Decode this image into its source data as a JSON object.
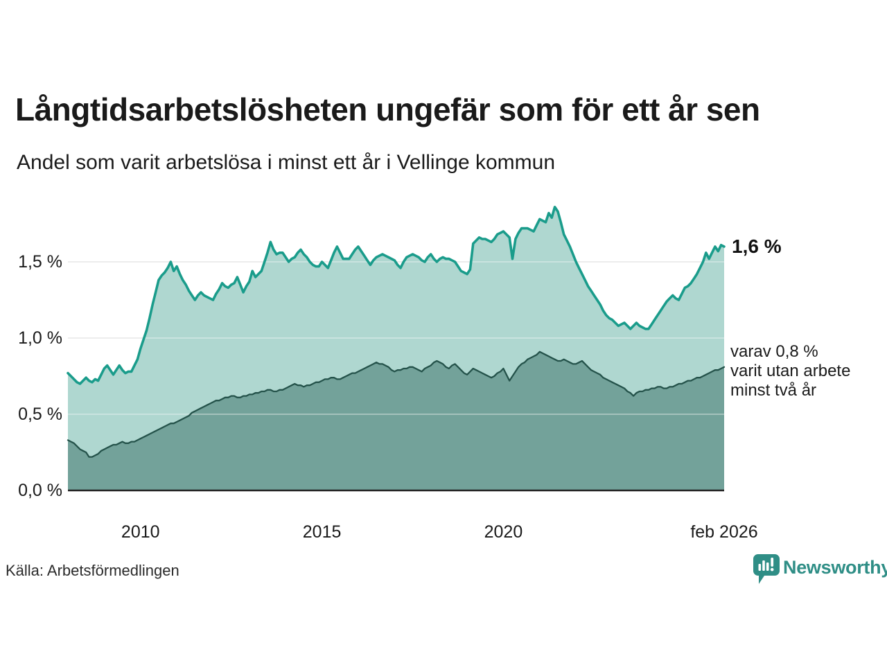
{
  "header": {
    "title": "Långtidsarbetslösheten ungefär som för ett år sen",
    "subtitle": "Andel som varit arbetslösa i minst ett år i Vellinge kommun"
  },
  "footer": {
    "source": "Källa: Arbetsförmedlingen",
    "brand": "Newsworthy"
  },
  "colors": {
    "teal_line": "#1a9c8b",
    "teal_fill": "#a6d3cb",
    "dark_fill": "#6d9c94",
    "dark_line": "#24524a",
    "grid": "#e3e3e3",
    "baseline": "#222222",
    "text": "#1a1a1a",
    "brand_teal": "#2f8e86"
  },
  "chart_data": {
    "type": "area",
    "title": "Långtidsarbetslösheten ungefär som för ett år sen",
    "subtitle": "Andel som varit arbetslösa i minst ett år i Vellinge kommun",
    "unit": "%",
    "grid": true,
    "legend": "none",
    "x_axis": {
      "frequency": "monthly",
      "start_label_implied": "2008",
      "end_label": "feb 2026",
      "ticks": [
        {
          "label": "2010",
          "month_index": 24
        },
        {
          "label": "2015",
          "month_index": 84
        },
        {
          "label": "2020",
          "month_index": 144
        },
        {
          "label": "feb 2026",
          "month_index": 217
        }
      ]
    },
    "y_axis": {
      "ticks": [
        0,
        0.5,
        1.0,
        1.5
      ],
      "tick_labels": [
        "0,0 %",
        "0,5 %",
        "1,0 %",
        "1,5 %"
      ],
      "ylim": [
        0,
        1.9
      ]
    },
    "annotations": {
      "latest_value_label": "1,6 %",
      "series2_label_lines": [
        "varav 0,8 %",
        "varit utan arbete",
        "minst två år"
      ]
    },
    "series": [
      {
        "name": "Andel arbetslösa minst ett år",
        "color": "#1a9c8b",
        "fill": "#a6d3cb",
        "latest_value": 1.6,
        "values": [
          0.77,
          0.75,
          0.73,
          0.71,
          0.7,
          0.72,
          0.74,
          0.72,
          0.71,
          0.73,
          0.72,
          0.76,
          0.8,
          0.82,
          0.79,
          0.76,
          0.79,
          0.82,
          0.79,
          0.77,
          0.78,
          0.78,
          0.82,
          0.86,
          0.93,
          0.99,
          1.05,
          1.13,
          1.22,
          1.3,
          1.38,
          1.41,
          1.43,
          1.46,
          1.5,
          1.44,
          1.47,
          1.42,
          1.38,
          1.35,
          1.31,
          1.28,
          1.25,
          1.28,
          1.3,
          1.28,
          1.27,
          1.26,
          1.25,
          1.29,
          1.32,
          1.36,
          1.34,
          1.33,
          1.35,
          1.36,
          1.4,
          1.35,
          1.3,
          1.34,
          1.37,
          1.44,
          1.4,
          1.42,
          1.44,
          1.5,
          1.56,
          1.63,
          1.58,
          1.55,
          1.56,
          1.56,
          1.53,
          1.5,
          1.52,
          1.53,
          1.56,
          1.58,
          1.55,
          1.53,
          1.5,
          1.48,
          1.47,
          1.47,
          1.5,
          1.48,
          1.46,
          1.51,
          1.56,
          1.6,
          1.56,
          1.52,
          1.52,
          1.52,
          1.55,
          1.58,
          1.6,
          1.57,
          1.54,
          1.51,
          1.48,
          1.51,
          1.53,
          1.54,
          1.55,
          1.54,
          1.53,
          1.52,
          1.51,
          1.48,
          1.46,
          1.5,
          1.53,
          1.54,
          1.55,
          1.54,
          1.53,
          1.51,
          1.5,
          1.53,
          1.55,
          1.52,
          1.5,
          1.52,
          1.53,
          1.52,
          1.52,
          1.51,
          1.5,
          1.47,
          1.44,
          1.43,
          1.42,
          1.45,
          1.62,
          1.64,
          1.66,
          1.65,
          1.65,
          1.64,
          1.63,
          1.65,
          1.68,
          1.69,
          1.7,
          1.68,
          1.66,
          1.52,
          1.65,
          1.69,
          1.72,
          1.72,
          1.72,
          1.71,
          1.7,
          1.74,
          1.78,
          1.77,
          1.76,
          1.82,
          1.79,
          1.86,
          1.83,
          1.76,
          1.68,
          1.64,
          1.6,
          1.55,
          1.5,
          1.46,
          1.42,
          1.38,
          1.34,
          1.31,
          1.28,
          1.25,
          1.22,
          1.18,
          1.15,
          1.13,
          1.12,
          1.1,
          1.08,
          1.09,
          1.1,
          1.08,
          1.06,
          1.08,
          1.1,
          1.08,
          1.07,
          1.06,
          1.06,
          1.09,
          1.12,
          1.15,
          1.18,
          1.21,
          1.24,
          1.26,
          1.28,
          1.26,
          1.25,
          1.29,
          1.33,
          1.34,
          1.36,
          1.39,
          1.42,
          1.46,
          1.5,
          1.56,
          1.52,
          1.56,
          1.6,
          1.57,
          1.61,
          1.6
        ]
      },
      {
        "name": "varav utan arbete minst två år",
        "color": "#24524a",
        "fill": "#6d9c94",
        "latest_value": 0.8,
        "values": [
          0.33,
          0.32,
          0.31,
          0.29,
          0.27,
          0.26,
          0.25,
          0.22,
          0.22,
          0.23,
          0.24,
          0.26,
          0.27,
          0.28,
          0.29,
          0.3,
          0.3,
          0.31,
          0.32,
          0.31,
          0.31,
          0.32,
          0.32,
          0.33,
          0.34,
          0.35,
          0.36,
          0.37,
          0.38,
          0.39,
          0.4,
          0.41,
          0.42,
          0.43,
          0.44,
          0.44,
          0.45,
          0.46,
          0.47,
          0.48,
          0.49,
          0.51,
          0.52,
          0.53,
          0.54,
          0.55,
          0.56,
          0.57,
          0.58,
          0.59,
          0.59,
          0.6,
          0.61,
          0.61,
          0.62,
          0.62,
          0.61,
          0.61,
          0.62,
          0.62,
          0.63,
          0.63,
          0.64,
          0.64,
          0.65,
          0.65,
          0.66,
          0.66,
          0.65,
          0.65,
          0.66,
          0.66,
          0.67,
          0.68,
          0.69,
          0.7,
          0.69,
          0.69,
          0.68,
          0.69,
          0.69,
          0.7,
          0.71,
          0.71,
          0.72,
          0.73,
          0.73,
          0.74,
          0.74,
          0.73,
          0.73,
          0.74,
          0.75,
          0.76,
          0.77,
          0.77,
          0.78,
          0.79,
          0.8,
          0.81,
          0.82,
          0.83,
          0.84,
          0.83,
          0.83,
          0.82,
          0.81,
          0.79,
          0.78,
          0.79,
          0.79,
          0.8,
          0.8,
          0.81,
          0.81,
          0.8,
          0.79,
          0.78,
          0.8,
          0.81,
          0.82,
          0.84,
          0.85,
          0.84,
          0.83,
          0.81,
          0.8,
          0.82,
          0.83,
          0.81,
          0.79,
          0.77,
          0.76,
          0.78,
          0.8,
          0.79,
          0.78,
          0.77,
          0.76,
          0.75,
          0.74,
          0.75,
          0.77,
          0.78,
          0.8,
          0.76,
          0.72,
          0.75,
          0.78,
          0.81,
          0.83,
          0.84,
          0.86,
          0.87,
          0.88,
          0.89,
          0.91,
          0.9,
          0.89,
          0.88,
          0.87,
          0.86,
          0.85,
          0.85,
          0.86,
          0.85,
          0.84,
          0.83,
          0.83,
          0.84,
          0.85,
          0.83,
          0.81,
          0.79,
          0.78,
          0.77,
          0.76,
          0.74,
          0.73,
          0.72,
          0.71,
          0.7,
          0.69,
          0.68,
          0.67,
          0.65,
          0.64,
          0.62,
          0.64,
          0.65,
          0.65,
          0.66,
          0.66,
          0.67,
          0.67,
          0.68,
          0.68,
          0.67,
          0.67,
          0.68,
          0.68,
          0.69,
          0.7,
          0.7,
          0.71,
          0.72,
          0.72,
          0.73,
          0.74,
          0.74,
          0.75,
          0.76,
          0.77,
          0.78,
          0.79,
          0.79,
          0.8,
          0.81
        ]
      }
    ]
  }
}
